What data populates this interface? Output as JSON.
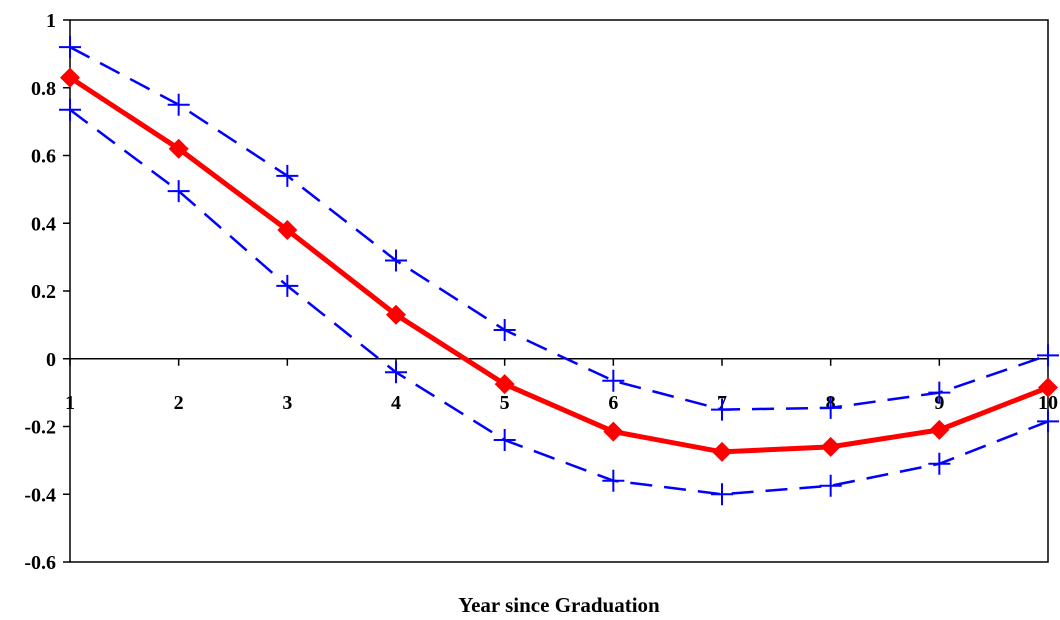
{
  "chart_data": {
    "type": "line",
    "title": "",
    "xlabel": "Year since Graduation",
    "ylabel": "",
    "x": [
      1,
      2,
      3,
      4,
      5,
      6,
      7,
      8,
      9,
      10
    ],
    "xlim": [
      1,
      10
    ],
    "ylim": [
      -0.6,
      1
    ],
    "yticks": [
      -0.6,
      -0.4,
      -0.2,
      0,
      0.2,
      0.4,
      0.6,
      0.8,
      1
    ],
    "ytick_labels": [
      "-0.6",
      "-0.4",
      "-0.2",
      "0",
      "0.2",
      "0.4",
      "0.6",
      "0.8",
      "1"
    ],
    "xtick_labels": [
      "1",
      "2",
      "3",
      "4",
      "5",
      "6",
      "7",
      "8",
      "9",
      "10"
    ],
    "grid": false,
    "legend": "none",
    "series": [
      {
        "role": "estimate",
        "color": "#ff0000",
        "marker": "diamond",
        "style": "solid",
        "values": [
          0.83,
          0.62,
          0.38,
          0.13,
          -0.075,
          -0.215,
          -0.275,
          -0.26,
          -0.21,
          -0.085
        ]
      },
      {
        "role": "upper-bound",
        "color": "#0000ff",
        "marker": "plus",
        "style": "dashed",
        "values": [
          0.92,
          0.75,
          0.54,
          0.29,
          0.085,
          -0.065,
          -0.15,
          -0.145,
          -0.1,
          0.01
        ]
      },
      {
        "role": "lower-bound",
        "color": "#0000ff",
        "marker": "plus",
        "style": "dashed",
        "values": [
          0.735,
          0.495,
          0.215,
          -0.04,
          -0.24,
          -0.36,
          -0.4,
          -0.375,
          -0.31,
          -0.185
        ]
      }
    ]
  }
}
